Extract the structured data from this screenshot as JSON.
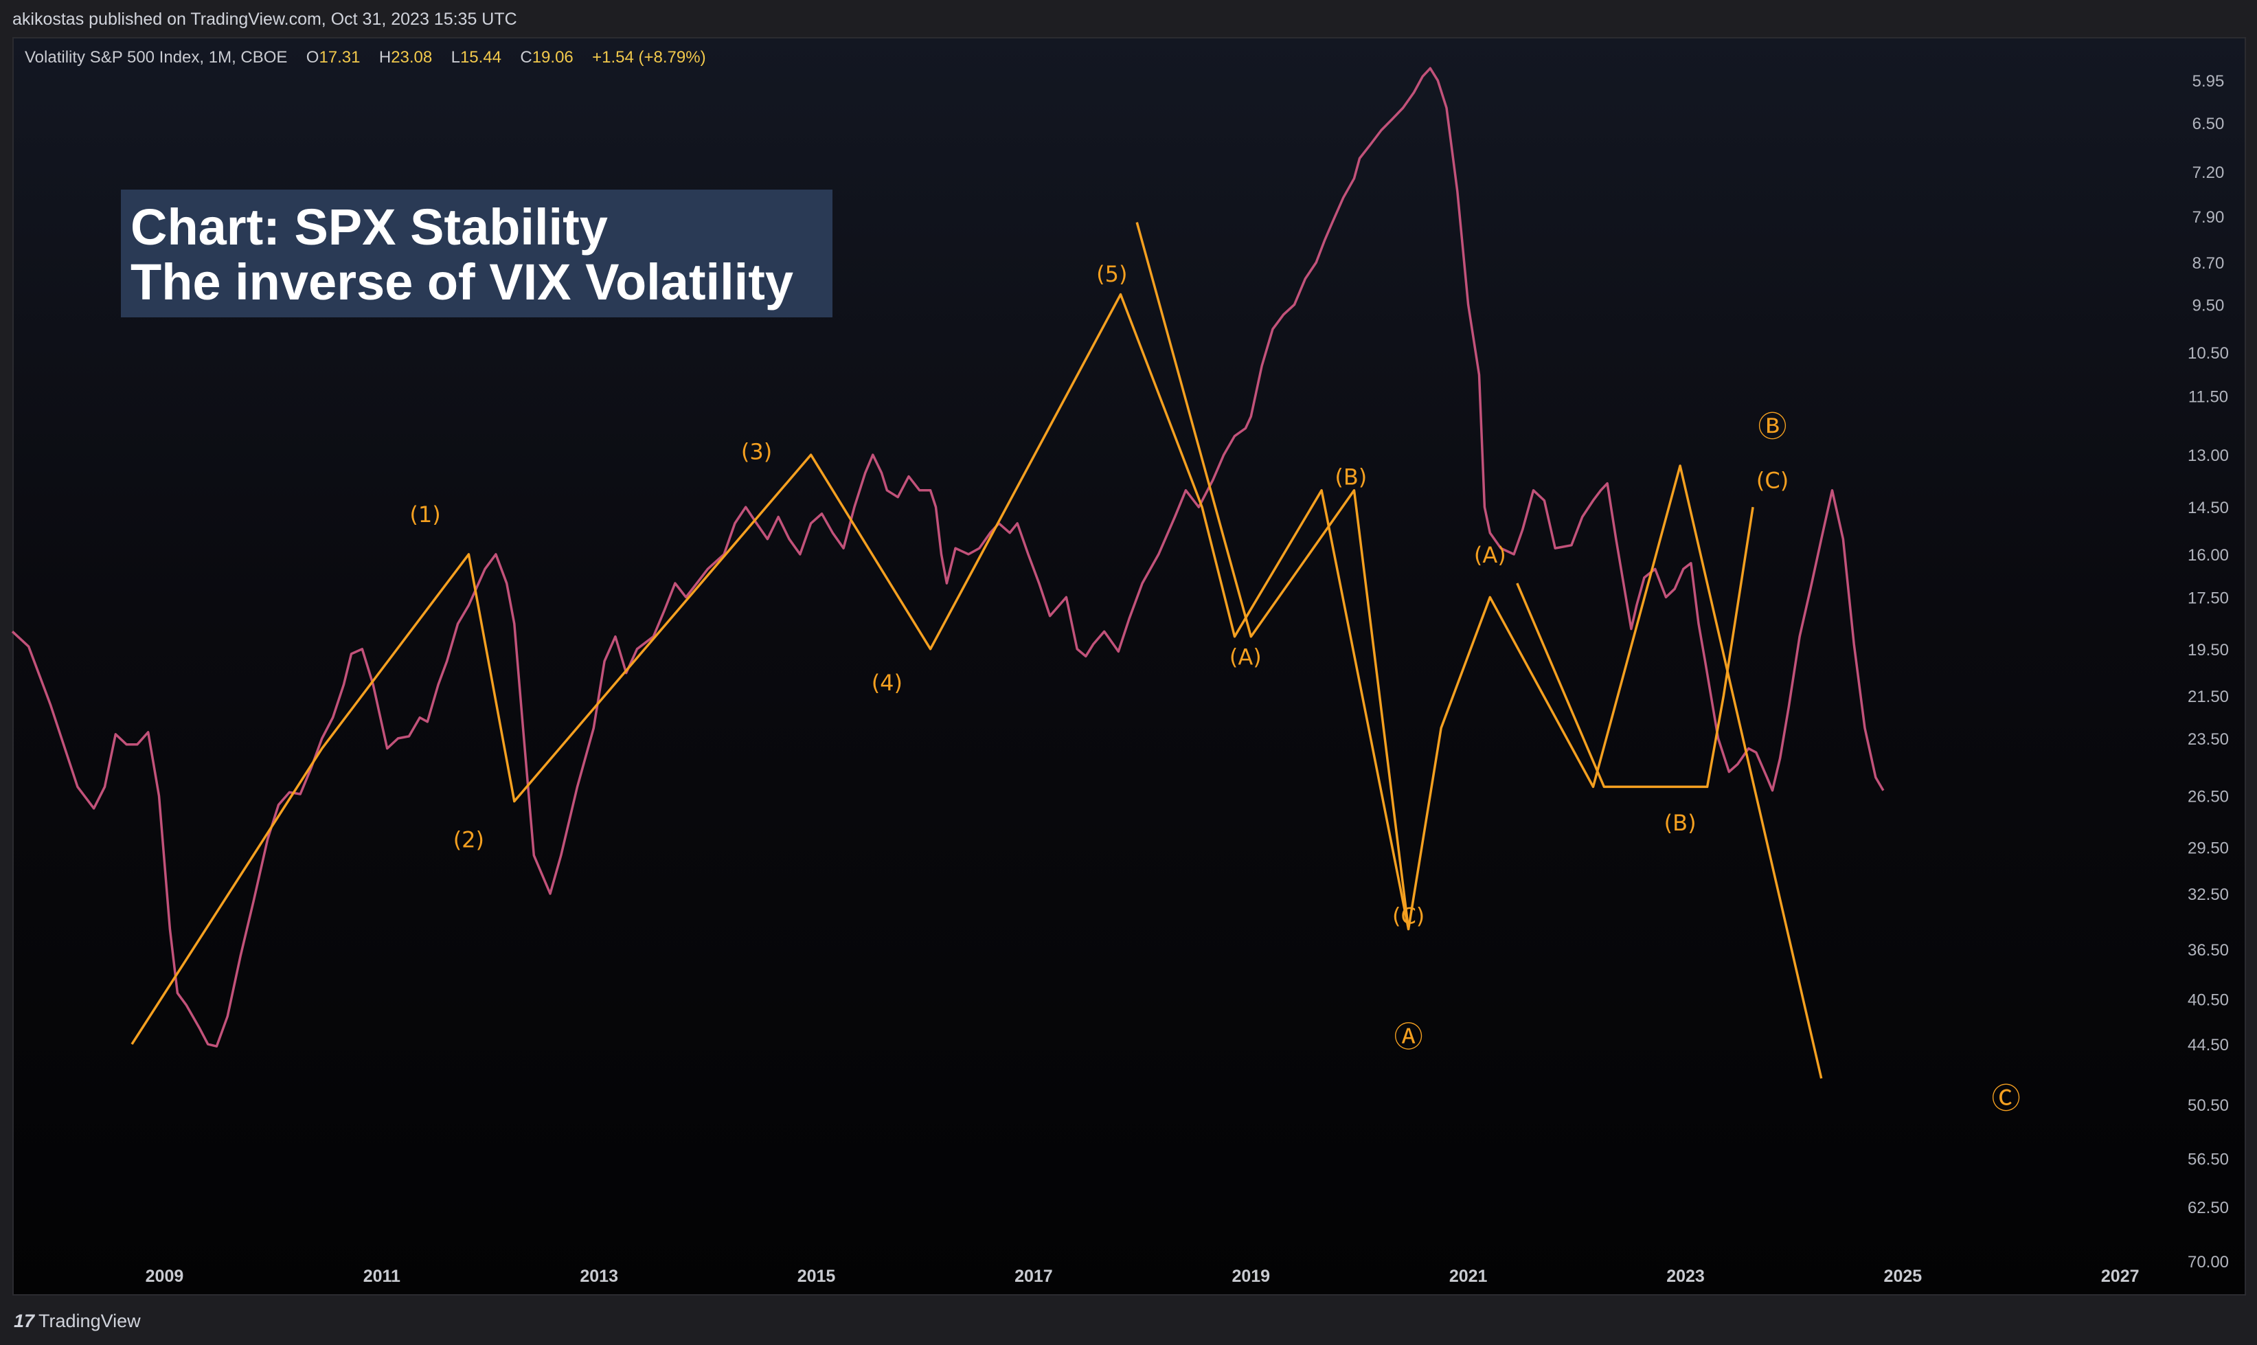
{
  "header": {
    "published": "akikostas published on TradingView.com, Oct 31, 2023 15:35 UTC"
  },
  "legend": {
    "symbol": "Volatility S&P 500 Index, 1M, CBOE",
    "open_k": "O",
    "open_v": "17.31",
    "high_k": "H",
    "high_v": "23.08",
    "low_k": "L",
    "low_v": "15.44",
    "close_k": "C",
    "close_v": "19.06",
    "change_v": "+1.54 (+8.79%)"
  },
  "title": {
    "line1": "Chart: SPX Stability",
    "line2": "The inverse of VIX Volatility"
  },
  "footer": {
    "brand": "TradingView",
    "mark": "17"
  },
  "colors": {
    "price_line": "#c2527a",
    "wave_line": "#f5a020",
    "background_top": "#131722",
    "background_bottom": "#030304",
    "title_bg": "#2a3a55"
  },
  "chart_data": {
    "type": "line",
    "scale": "inverted-log",
    "xlim": [
      2007.6,
      2027.4
    ],
    "ylim": [
      5.45,
      75
    ],
    "y_ticks": [
      "5.95",
      "6.50",
      "7.20",
      "7.90",
      "8.70",
      "9.50",
      "10.50",
      "11.50",
      "13.00",
      "14.50",
      "16.00",
      "17.50",
      "19.50",
      "21.50",
      "23.50",
      "26.50",
      "29.50",
      "32.50",
      "36.50",
      "40.50",
      "44.50",
      "50.50",
      "56.50",
      "62.50",
      "70.00"
    ],
    "x_ticks": [
      "2009",
      "2011",
      "2013",
      "2015",
      "2017",
      "2019",
      "2021",
      "2023",
      "2025",
      "2027"
    ],
    "series": [
      {
        "values": [
          [
            2007.6,
            18.8
          ],
          [
            2007.75,
            19.4
          ],
          [
            2007.95,
            21.9
          ],
          [
            2008.2,
            26.0
          ],
          [
            2008.35,
            27.2
          ],
          [
            2008.45,
            26.0
          ],
          [
            2008.55,
            23.3
          ],
          [
            2008.65,
            23.8
          ],
          [
            2008.75,
            23.8
          ],
          [
            2008.85,
            23.2
          ],
          [
            2008.95,
            26.5
          ],
          [
            2009.05,
            35.0
          ],
          [
            2009.12,
            40.0
          ],
          [
            2009.2,
            41.0
          ],
          [
            2009.32,
            43.0
          ],
          [
            2009.4,
            44.5
          ],
          [
            2009.48,
            44.7
          ],
          [
            2009.58,
            42.0
          ],
          [
            2009.7,
            37.0
          ],
          [
            2009.82,
            33.0
          ],
          [
            2009.95,
            29.0
          ],
          [
            2010.05,
            27.0
          ],
          [
            2010.15,
            26.3
          ],
          [
            2010.25,
            26.4
          ],
          [
            2010.35,
            25.0
          ],
          [
            2010.45,
            23.5
          ],
          [
            2010.55,
            22.5
          ],
          [
            2010.65,
            21.0
          ],
          [
            2010.72,
            19.7
          ],
          [
            2010.82,
            19.5
          ],
          [
            2010.92,
            21.0
          ],
          [
            2011.05,
            24.0
          ],
          [
            2011.15,
            23.5
          ],
          [
            2011.25,
            23.4
          ],
          [
            2011.35,
            22.5
          ],
          [
            2011.42,
            22.7
          ],
          [
            2011.52,
            21.0
          ],
          [
            2011.6,
            20.0
          ],
          [
            2011.7,
            18.5
          ],
          [
            2011.8,
            17.8
          ],
          [
            2011.95,
            16.5
          ],
          [
            2012.05,
            16.0
          ],
          [
            2012.15,
            17.0
          ],
          [
            2012.22,
            18.5
          ],
          [
            2012.3,
            23.0
          ],
          [
            2012.4,
            30.0
          ],
          [
            2012.55,
            32.5
          ],
          [
            2012.65,
            30.0
          ],
          [
            2012.8,
            26.0
          ],
          [
            2012.95,
            23.0
          ],
          [
            2013.05,
            20.0
          ],
          [
            2013.15,
            19.0
          ],
          [
            2013.25,
            20.5
          ],
          [
            2013.35,
            19.5
          ],
          [
            2013.5,
            19.0
          ],
          [
            2013.6,
            18.0
          ],
          [
            2013.7,
            17.0
          ],
          [
            2013.8,
            17.5
          ],
          [
            2013.9,
            17.0
          ],
          [
            2014.0,
            16.5
          ],
          [
            2014.15,
            16.0
          ],
          [
            2014.25,
            15.0
          ],
          [
            2014.35,
            14.5
          ],
          [
            2014.45,
            15.0
          ],
          [
            2014.55,
            15.5
          ],
          [
            2014.65,
            14.8
          ],
          [
            2014.75,
            15.5
          ],
          [
            2014.85,
            16.0
          ],
          [
            2014.95,
            15.0
          ],
          [
            2015.05,
            14.7
          ],
          [
            2015.15,
            15.3
          ],
          [
            2015.25,
            15.8
          ],
          [
            2015.35,
            14.5
          ],
          [
            2015.45,
            13.5
          ],
          [
            2015.52,
            13.0
          ],
          [
            2015.6,
            13.5
          ],
          [
            2015.65,
            14.0
          ],
          [
            2015.75,
            14.2
          ],
          [
            2015.85,
            13.6
          ],
          [
            2015.95,
            14.0
          ],
          [
            2016.05,
            14.0
          ],
          [
            2016.1,
            14.5
          ],
          [
            2016.15,
            16.0
          ],
          [
            2016.2,
            17.0
          ],
          [
            2016.28,
            15.8
          ],
          [
            2016.4,
            16.0
          ],
          [
            2016.5,
            15.8
          ],
          [
            2016.6,
            15.3
          ],
          [
            2016.68,
            15.0
          ],
          [
            2016.78,
            15.3
          ],
          [
            2016.85,
            15.0
          ],
          [
            2016.95,
            16.0
          ],
          [
            2017.05,
            17.0
          ],
          [
            2017.15,
            18.2
          ],
          [
            2017.3,
            17.5
          ],
          [
            2017.4,
            19.5
          ],
          [
            2017.48,
            19.8
          ],
          [
            2017.55,
            19.3
          ],
          [
            2017.65,
            18.8
          ],
          [
            2017.78,
            19.6
          ],
          [
            2017.88,
            18.3
          ],
          [
            2018.0,
            17.0
          ],
          [
            2018.15,
            16.0
          ],
          [
            2018.3,
            14.8
          ],
          [
            2018.4,
            14.0
          ],
          [
            2018.52,
            14.5
          ],
          [
            2018.65,
            13.7
          ],
          [
            2018.75,
            13.0
          ],
          [
            2018.85,
            12.5
          ],
          [
            2018.95,
            12.3
          ],
          [
            2019.0,
            12.0
          ],
          [
            2019.1,
            10.8
          ],
          [
            2019.2,
            10.0
          ],
          [
            2019.3,
            9.7
          ],
          [
            2019.4,
            9.5
          ],
          [
            2019.5,
            9.0
          ],
          [
            2019.6,
            8.7
          ],
          [
            2019.68,
            8.3
          ],
          [
            2019.75,
            8.0
          ],
          [
            2019.85,
            7.6
          ],
          [
            2019.95,
            7.3
          ],
          [
            2020.0,
            7.0
          ],
          [
            2020.1,
            6.8
          ],
          [
            2020.2,
            6.6
          ],
          [
            2020.3,
            6.45
          ],
          [
            2020.4,
            6.3
          ],
          [
            2020.5,
            6.1
          ],
          [
            2020.58,
            5.9
          ],
          [
            2020.65,
            5.8
          ],
          [
            2020.72,
            5.95
          ],
          [
            2020.8,
            6.3
          ],
          [
            2020.9,
            7.5
          ],
          [
            2021.0,
            9.5
          ],
          [
            2021.1,
            11.0
          ],
          [
            2021.15,
            14.5
          ],
          [
            2021.2,
            15.3
          ],
          [
            2021.3,
            15.8
          ],
          [
            2021.42,
            16.0
          ],
          [
            2021.5,
            15.2
          ],
          [
            2021.6,
            14.0
          ],
          [
            2021.7,
            14.3
          ],
          [
            2021.8,
            15.8
          ],
          [
            2021.95,
            15.7
          ],
          [
            2022.05,
            14.8
          ],
          [
            2022.15,
            14.3
          ],
          [
            2022.22,
            14.0
          ],
          [
            2022.28,
            13.8
          ],
          [
            2022.36,
            15.5
          ],
          [
            2022.5,
            18.7
          ],
          [
            2022.55,
            17.8
          ],
          [
            2022.62,
            16.8
          ],
          [
            2022.72,
            16.5
          ],
          [
            2022.82,
            17.5
          ],
          [
            2022.9,
            17.2
          ],
          [
            2022.98,
            16.5
          ],
          [
            2023.05,
            16.3
          ],
          [
            2023.12,
            18.5
          ],
          [
            2023.18,
            20.0
          ],
          [
            2023.3,
            23.5
          ],
          [
            2023.4,
            25.2
          ],
          [
            2023.48,
            24.8
          ],
          [
            2023.58,
            24.0
          ],
          [
            2023.65,
            24.2
          ],
          [
            2023.75,
            25.5
          ],
          [
            2023.8,
            26.2
          ],
          [
            2023.87,
            24.5
          ],
          [
            2023.95,
            22.0
          ],
          [
            2024.05,
            19.0
          ],
          [
            2024.15,
            17.2
          ],
          [
            2024.25,
            15.5
          ],
          [
            2024.35,
            14.0
          ],
          [
            2024.45,
            15.5
          ],
          [
            2024.55,
            19.3
          ],
          [
            2024.65,
            23.0
          ],
          [
            2024.75,
            25.5
          ],
          [
            2024.82,
            26.2
          ]
        ]
      },
      {
        "values": [
          [
            2008.7,
            44.5
          ],
          [
            2010.45,
            24.0
          ],
          [
            2011.8,
            16.0
          ],
          [
            2012.22,
            26.8
          ],
          [
            2014.95,
            13.0
          ],
          [
            2016.05,
            19.5
          ],
          [
            2017.8,
            9.3
          ],
          [
            2018.55,
            14.5
          ],
          [
            2018.85,
            19.0
          ],
          [
            2019.65,
            14.0
          ],
          [
            2020.45,
            35.0
          ],
          [
            2020.75,
            23.0
          ],
          [
            2021.2,
            17.5
          ],
          [
            2022.15,
            26.0
          ],
          [
            2022.95,
            13.3
          ],
          [
            2024.25,
            47.8
          ]
        ]
      },
      {
        "values": [
          [
            2017.95,
            8.0
          ],
          [
            2019.0,
            19.0
          ],
          [
            2019.95,
            14.0
          ],
          [
            2020.45,
            35.0
          ]
        ]
      },
      {
        "values": [
          [
            2021.45,
            17.0
          ],
          [
            2022.25,
            26.0
          ],
          [
            2023.2,
            26.0
          ],
          [
            2023.35,
            21.5
          ],
          [
            2023.62,
            14.5
          ]
        ]
      }
    ],
    "annotations": [
      {
        "text": "(1)",
        "x": 2011.4,
        "y": 14.7
      },
      {
        "text": "(2)",
        "x": 2011.8,
        "y": 29.0
      },
      {
        "text": "(3)",
        "x": 2014.45,
        "y": 12.9
      },
      {
        "text": "(4)",
        "x": 2015.65,
        "y": 20.9
      },
      {
        "text": "(5)",
        "x": 2017.72,
        "y": 8.9
      },
      {
        "text": "(A)",
        "x": 2018.95,
        "y": 19.8
      },
      {
        "text": "(B)",
        "x": 2019.92,
        "y": 13.6
      },
      {
        "text": "(C)",
        "x": 2020.45,
        "y": 34.0
      },
      {
        "text": "Ⓐ",
        "x": 2020.45,
        "y": 44.0
      },
      {
        "text": "(A)",
        "x": 2021.2,
        "y": 16.0
      },
      {
        "text": "(B)",
        "x": 2022.95,
        "y": 28.0
      },
      {
        "text": "Ⓑ",
        "x": 2023.8,
        "y": 12.3
      },
      {
        "text": "(C)",
        "x": 2023.8,
        "y": 13.7
      },
      {
        "text": "Ⓒ",
        "x": 2025.95,
        "y": 50.0
      }
    ]
  }
}
